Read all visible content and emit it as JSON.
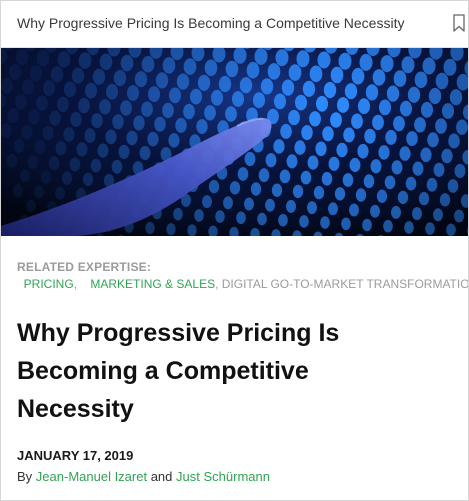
{
  "header": {
    "title": "Why Progressive Pricing Is Becoming a Competitive Necessity",
    "bookmark_icon": "bookmark-icon"
  },
  "hero": {
    "description_icon": "hero-image",
    "colors": {
      "background": "#030816",
      "glow": "#2f8cff",
      "finger": "#5a6fe0"
    }
  },
  "related": {
    "label": "RELATED EXPERTISE:",
    "tags": [
      {
        "label": "PRICING",
        "sep": ","
      },
      {
        "label": "MARKETING & SALES",
        "sep": ","
      },
      {
        "label": "DIGITAL GO-TO-MARKET TRANSFORMATION",
        "sep": ""
      }
    ]
  },
  "article": {
    "title_lines": [
      "Why Progressive Pricing Is",
      "Becoming a Competitive",
      "Necessity"
    ],
    "date": "JANUARY 17, 2019",
    "by": "By",
    "and": "and",
    "authors": [
      "Jean-Manuel Izaret",
      "Just Schürmann"
    ]
  },
  "colors": {
    "accent": "#2fa552",
    "muted": "#9b9b9b",
    "text": "#111111"
  }
}
